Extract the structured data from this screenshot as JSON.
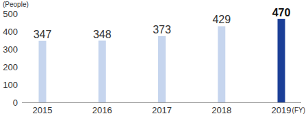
{
  "chart_data": {
    "type": "bar",
    "y_label": "(People)",
    "x_label": "(FY)",
    "categories": [
      "2015",
      "2016",
      "2017",
      "2018",
      "2019"
    ],
    "values": [
      347,
      348,
      373,
      429,
      470
    ],
    "colors": [
      "#c6d5ee",
      "#c6d5ee",
      "#c6d5ee",
      "#c6d5ee",
      "#1b3f97"
    ],
    "ylim": [
      0,
      500
    ],
    "yticks": [
      0,
      100,
      200,
      300,
      400,
      500
    ],
    "grid": false,
    "data_labels": true
  }
}
